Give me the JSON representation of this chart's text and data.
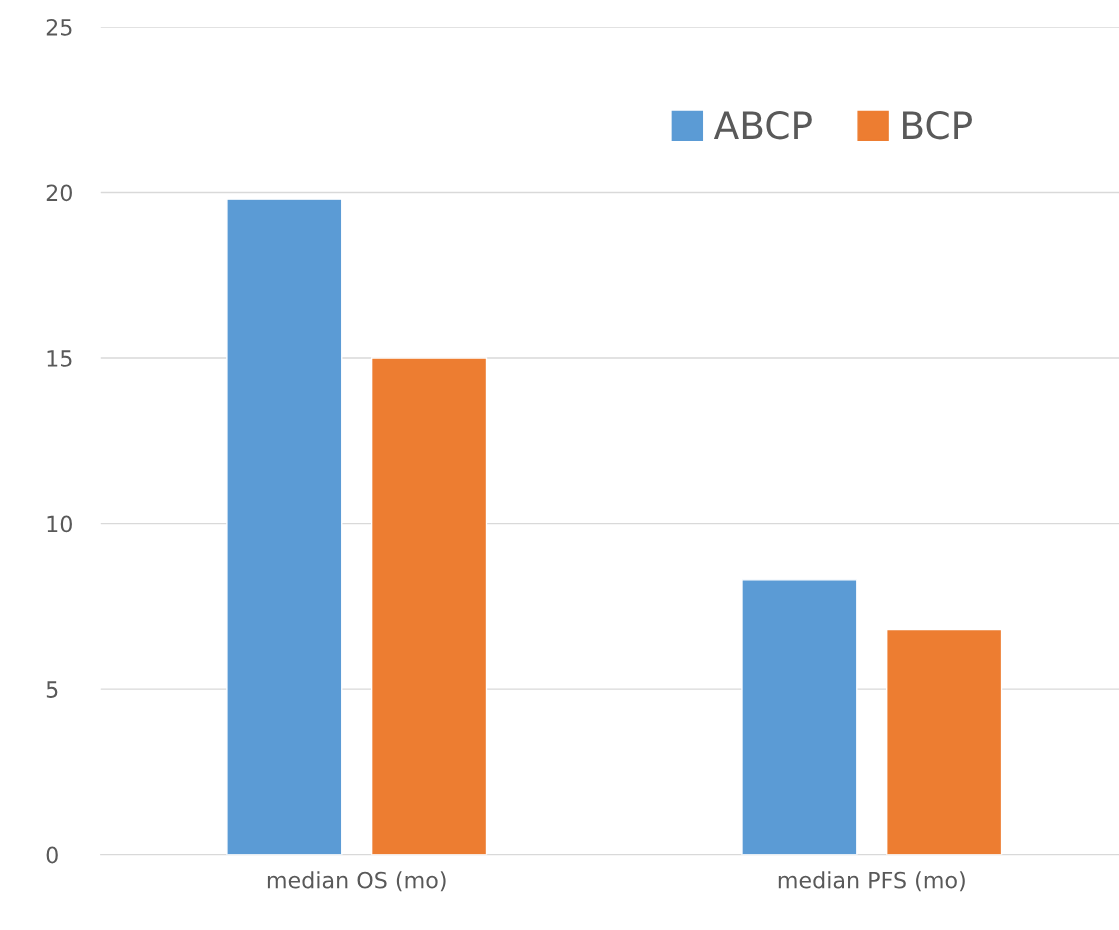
{
  "chart_data": {
    "type": "bar",
    "categories": [
      "median OS (mo)",
      "median PFS (mo)"
    ],
    "series": [
      {
        "name": "ABCP",
        "color": "#5b9bd5",
        "values": [
          19.8,
          8.3
        ]
      },
      {
        "name": "BCP",
        "color": "#ed7d31",
        "values": [
          15.0,
          6.8
        ]
      }
    ],
    "ylim": [
      0,
      25
    ],
    "yticks": [
      0,
      5,
      10,
      15,
      20,
      25
    ],
    "grid": "y",
    "legend": "top right"
  }
}
